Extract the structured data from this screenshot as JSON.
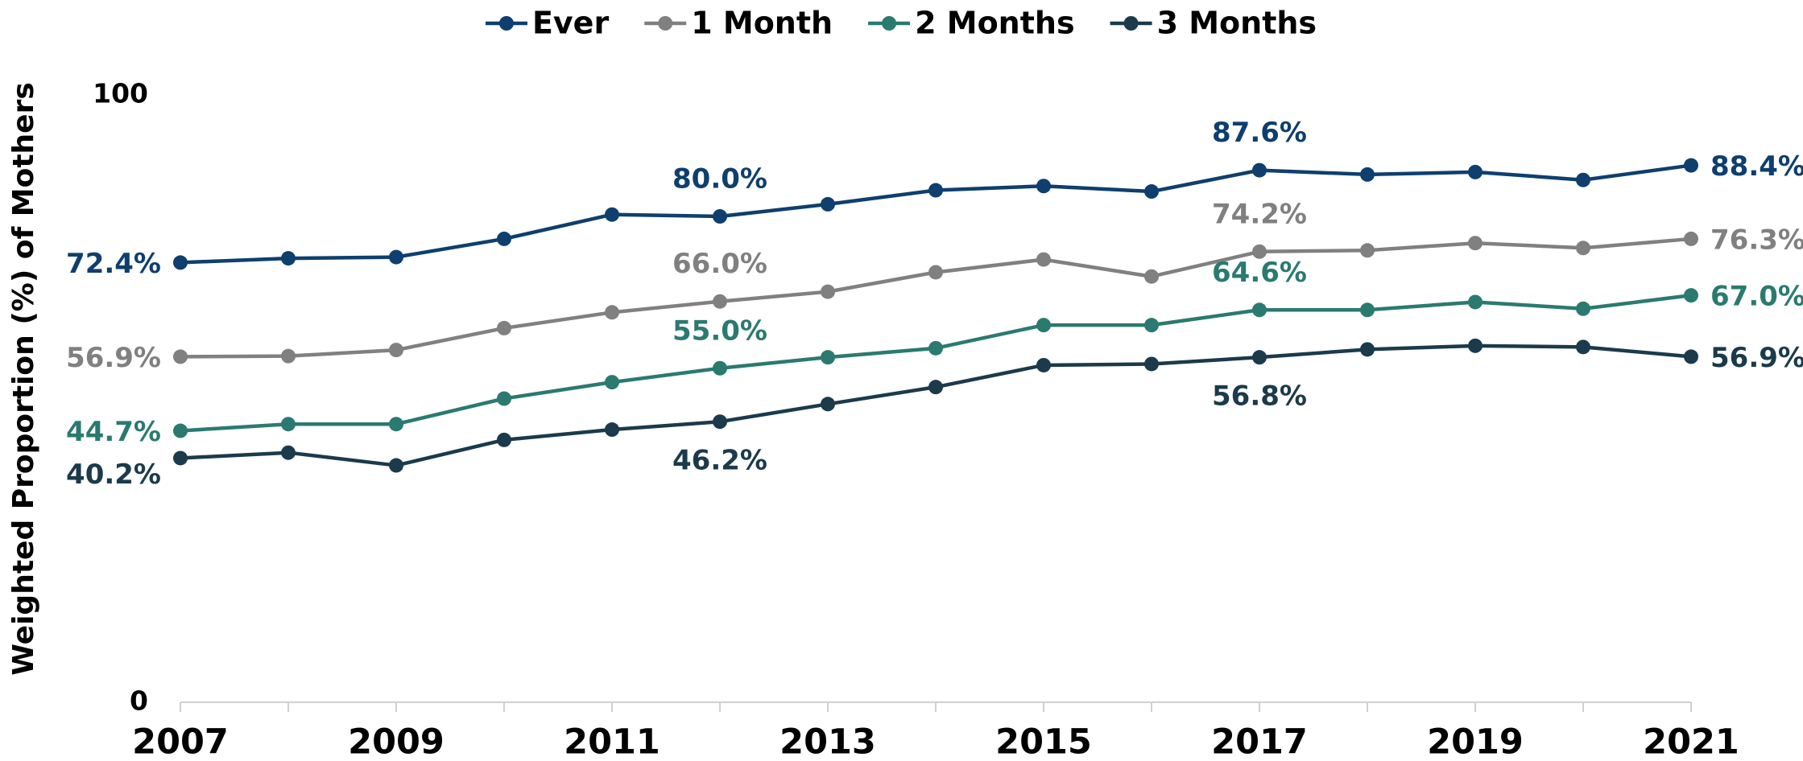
{
  "chart_data": {
    "type": "line",
    "y_axis_label": "Weighted Proportion (%) of Mothers",
    "x": [
      2007,
      2008,
      2009,
      2010,
      2011,
      2012,
      2013,
      2014,
      2015,
      2016,
      2017,
      2018,
      2019,
      2020,
      2021
    ],
    "xlim": [
      2007,
      2021
    ],
    "xticks": [
      2007,
      2009,
      2011,
      2013,
      2015,
      2017,
      2019,
      2021
    ],
    "ylim": [
      0,
      100
    ],
    "yticks": [
      0,
      100
    ],
    "grid": false,
    "legend": "top",
    "series": [
      {
        "name": "Ever",
        "color": "#0e3f6e",
        "values": [
          72.4,
          73.1,
          73.3,
          76.3,
          80.3,
          80.0,
          82.0,
          84.3,
          85.0,
          84.1,
          87.6,
          86.9,
          87.3,
          86.0,
          88.4
        ],
        "value_labels": [
          "72.4%",
          null,
          null,
          null,
          null,
          "80.0%",
          null,
          null,
          null,
          null,
          "87.6%",
          null,
          null,
          null,
          "88.4%"
        ]
      },
      {
        "name": "1 Month",
        "color": "#808080",
        "values": [
          56.9,
          57.0,
          58.0,
          61.6,
          64.2,
          66.0,
          67.6,
          70.8,
          72.9,
          70.1,
          74.2,
          74.4,
          75.6,
          74.8,
          76.3
        ],
        "value_labels": [
          "56.9%",
          null,
          null,
          null,
          null,
          "66.0%",
          null,
          null,
          null,
          null,
          "74.2%",
          null,
          null,
          null,
          "76.3%"
        ]
      },
      {
        "name": "2 Months",
        "color": "#2a7a70",
        "values": [
          44.7,
          45.8,
          45.8,
          50.0,
          52.7,
          55.0,
          56.8,
          58.3,
          62.1,
          62.1,
          64.6,
          64.6,
          65.9,
          64.8,
          67.0
        ],
        "value_labels": [
          "44.7%",
          null,
          null,
          null,
          null,
          "55.0%",
          null,
          null,
          null,
          null,
          "64.6%",
          null,
          null,
          null,
          "67.0%"
        ]
      },
      {
        "name": "3 Months",
        "color": "#1b3a4b",
        "values": [
          40.2,
          41.1,
          39.0,
          43.2,
          44.9,
          46.2,
          49.1,
          51.9,
          55.5,
          55.7,
          56.8,
          58.1,
          58.7,
          58.5,
          56.9
        ],
        "value_labels": [
          "40.2%",
          null,
          null,
          null,
          null,
          "46.2%",
          null,
          null,
          null,
          null,
          "56.8%",
          null,
          null,
          null,
          "56.9%"
        ]
      }
    ]
  }
}
